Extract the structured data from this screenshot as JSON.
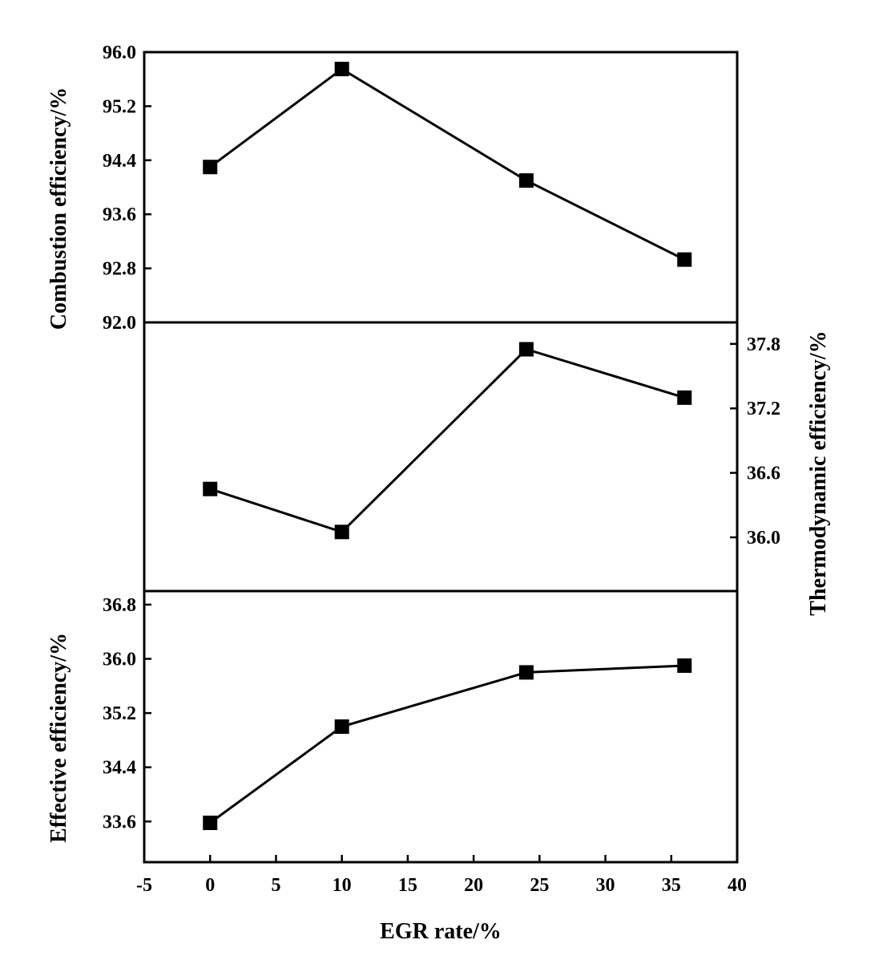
{
  "chart_data": {
    "type": "line",
    "x": [
      0,
      10,
      24,
      36
    ],
    "x_ticks": [
      "-5",
      "0",
      "5",
      "10",
      "15",
      "20",
      "25",
      "30",
      "35",
      "40"
    ],
    "xlim": [
      -5,
      40
    ],
    "xlabel": "EGR rate/%",
    "grid": false,
    "panels": [
      {
        "ylabel": "Combustion efficiency/%",
        "y_axis_side": "left",
        "ylim": [
          92.0,
          96.0
        ],
        "y_ticks": [
          "92.0",
          "92.8",
          "93.6",
          "94.4",
          "95.2",
          "96.0"
        ],
        "values": [
          94.3,
          95.75,
          94.1,
          92.93
        ]
      },
      {
        "ylabel": "Thermodynamic efficiency/%",
        "y_axis_side": "right",
        "ylim": [
          35.5,
          38.0
        ],
        "y_ticks": [
          "36.0",
          "36.6",
          "37.2",
          "37.8"
        ],
        "values": [
          36.45,
          36.05,
          37.75,
          37.3
        ]
      },
      {
        "ylabel": "Effective efficiency/%",
        "y_axis_side": "left",
        "ylim": [
          33.0,
          37.0
        ],
        "y_ticks": [
          "33.6",
          "34.4",
          "35.2",
          "36.0",
          "36.8"
        ],
        "values": [
          33.58,
          35.0,
          35.8,
          35.9
        ]
      }
    ]
  }
}
